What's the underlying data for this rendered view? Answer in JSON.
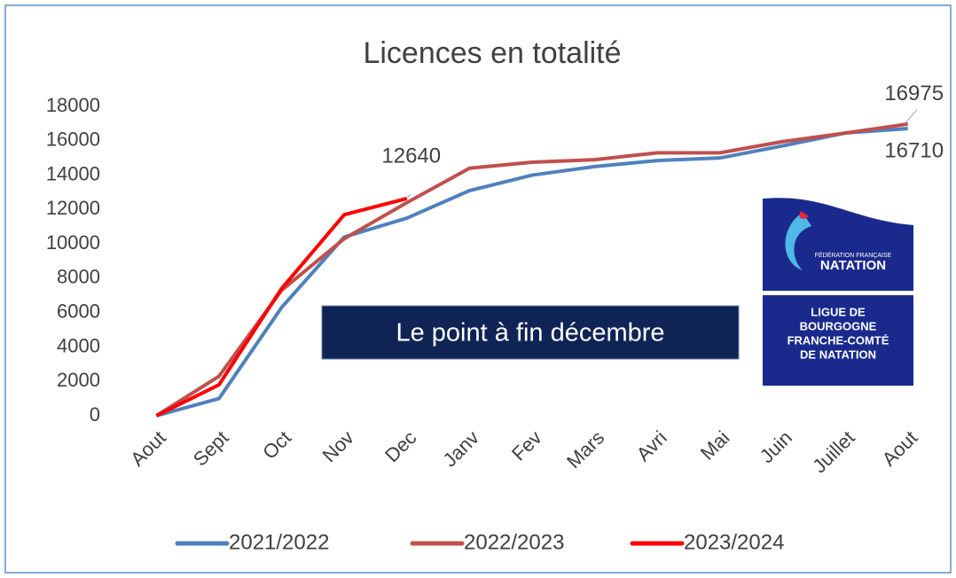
{
  "chart_data": {
    "type": "line",
    "title": "Licences en totalité",
    "categories": [
      "Aout",
      "Sept",
      "Oct",
      "Nov",
      "Dec",
      "Janv",
      "Fev",
      "Mars",
      "Avri",
      "Mai",
      "Juin",
      "Juillet",
      "Aout"
    ],
    "series": [
      {
        "name": "2021/2022",
        "color": "#4f81bd",
        "values": [
          0,
          1000,
          6300,
          10400,
          11500,
          13100,
          14000,
          14500,
          14850,
          15000,
          15700,
          16450,
          16710
        ]
      },
      {
        "name": "2022/2023",
        "color": "#c0504d",
        "values": [
          0,
          2300,
          7300,
          10300,
          12400,
          14400,
          14750,
          14900,
          15300,
          15300,
          15950,
          16450,
          16975
        ]
      },
      {
        "name": "2023/2024",
        "color": "#ff0000",
        "values": [
          0,
          1800,
          7400,
          11700,
          12640,
          null,
          null,
          null,
          null,
          null,
          null,
          null,
          null
        ]
      }
    ],
    "ylim": [
      0,
      18000
    ],
    "yticks": [
      0,
      2000,
      4000,
      6000,
      8000,
      10000,
      12000,
      14000,
      16000,
      18000
    ],
    "grid": false,
    "legend": "bottom",
    "annotation": "Le point à fin décembre",
    "logo": {
      "top": [
        "FÉDÉRATION FRANÇAISE",
        "NATATION"
      ],
      "bottom": [
        "LIGUE DE",
        "BOURGOGNE",
        "FRANCHE-COMTÉ",
        "DE NATATION"
      ]
    }
  }
}
